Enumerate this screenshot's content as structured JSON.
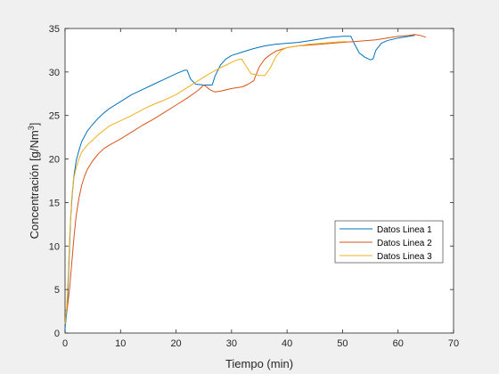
{
  "chart_data": {
    "type": "line",
    "title": "",
    "xlabel": "Tiempo (min)",
    "ylabel_prefix": "Concentración [g/Nm",
    "ylabel_sup": "3",
    "ylabel_suffix": "]",
    "xlim": [
      0,
      70
    ],
    "ylim": [
      0,
      35
    ],
    "xticks": [
      "0",
      "10",
      "20",
      "30",
      "40",
      "50",
      "60",
      "70"
    ],
    "yticks": [
      "0",
      "5",
      "10",
      "15",
      "20",
      "25",
      "30",
      "35"
    ],
    "grid": false,
    "legend_position": "right",
    "series": [
      {
        "name": "Datos Linea 1",
        "color": "#0072BD",
        "points": [
          [
            0,
            0.5
          ],
          [
            0.4,
            3
          ],
          [
            0.7,
            8
          ],
          [
            1,
            13
          ],
          [
            1.3,
            16
          ],
          [
            1.6,
            18
          ],
          [
            2,
            19.8
          ],
          [
            2.5,
            21
          ],
          [
            3,
            22
          ],
          [
            4,
            23.2
          ],
          [
            5,
            24
          ],
          [
            6,
            24.7
          ],
          [
            7,
            25.3
          ],
          [
            8,
            25.8
          ],
          [
            10,
            26.6
          ],
          [
            12,
            27.4
          ],
          [
            14,
            28
          ],
          [
            16,
            28.6
          ],
          [
            18,
            29.2
          ],
          [
            20,
            29.8
          ],
          [
            21.5,
            30.2
          ],
          [
            22,
            30.2
          ],
          [
            22.6,
            29.2
          ],
          [
            23.5,
            28.6
          ],
          [
            25,
            28.5
          ],
          [
            26.5,
            28.5
          ],
          [
            27,
            29.5
          ],
          [
            28,
            30.8
          ],
          [
            29,
            31.5
          ],
          [
            30,
            31.9
          ],
          [
            32,
            32.3
          ],
          [
            34,
            32.7
          ],
          [
            36,
            33
          ],
          [
            38,
            33.2
          ],
          [
            40,
            33.3
          ],
          [
            42,
            33.4
          ],
          [
            44,
            33.6
          ],
          [
            46,
            33.8
          ],
          [
            48,
            34
          ],
          [
            50,
            34.1
          ],
          [
            51.5,
            34.1
          ],
          [
            52,
            33.4
          ],
          [
            53,
            32.2
          ],
          [
            54,
            31.7
          ],
          [
            55,
            31.4
          ],
          [
            55.5,
            31.5
          ],
          [
            56,
            32.5
          ],
          [
            57,
            33.3
          ],
          [
            58,
            33.6
          ],
          [
            60,
            33.9
          ],
          [
            62,
            34.1
          ],
          [
            63,
            34.2
          ]
        ]
      },
      {
        "name": "Datos Linea 2",
        "color": "#D95319",
        "points": [
          [
            0,
            2.5
          ],
          [
            0.4,
            2.8
          ],
          [
            0.8,
            5
          ],
          [
            1.2,
            8
          ],
          [
            1.6,
            11
          ],
          [
            2,
            13.5
          ],
          [
            2.5,
            15.5
          ],
          [
            3,
            17
          ],
          [
            3.5,
            18
          ],
          [
            4,
            18.8
          ],
          [
            5,
            19.8
          ],
          [
            6,
            20.6
          ],
          [
            7,
            21.2
          ],
          [
            8,
            21.6
          ],
          [
            10,
            22.3
          ],
          [
            12,
            23.1
          ],
          [
            14,
            23.9
          ],
          [
            16,
            24.6
          ],
          [
            18,
            25.4
          ],
          [
            20,
            26.2
          ],
          [
            22,
            27
          ],
          [
            24,
            27.9
          ],
          [
            25,
            28.5
          ],
          [
            25.5,
            28.3
          ],
          [
            26,
            28
          ],
          [
            27,
            27.7
          ],
          [
            28,
            27.8
          ],
          [
            30,
            28.1
          ],
          [
            32,
            28.3
          ],
          [
            33,
            28.6
          ],
          [
            34,
            29
          ],
          [
            35,
            30.6
          ],
          [
            36,
            31.5
          ],
          [
            37,
            32
          ],
          [
            38,
            32.4
          ],
          [
            40,
            32.8
          ],
          [
            42,
            33
          ],
          [
            44,
            33.1
          ],
          [
            46,
            33.2
          ],
          [
            48,
            33.3
          ],
          [
            50,
            33.4
          ],
          [
            52,
            33.5
          ],
          [
            54,
            33.6
          ],
          [
            56,
            33.7
          ],
          [
            58,
            33.9
          ],
          [
            60,
            34.1
          ],
          [
            62,
            34.2
          ],
          [
            63,
            34.3
          ],
          [
            64,
            34.2
          ],
          [
            65,
            34
          ]
        ]
      },
      {
        "name": "Datos Linea 3",
        "color": "#EDB120",
        "points": [
          [
            0,
            1
          ],
          [
            0.3,
            3
          ],
          [
            0.6,
            7
          ],
          [
            0.9,
            12
          ],
          [
            1.2,
            15.5
          ],
          [
            1.5,
            17.5
          ],
          [
            2,
            19
          ],
          [
            2.5,
            20
          ],
          [
            3,
            20.8
          ],
          [
            4,
            21.6
          ],
          [
            5,
            22.2
          ],
          [
            6,
            22.8
          ],
          [
            7,
            23.3
          ],
          [
            8,
            23.8
          ],
          [
            10,
            24.4
          ],
          [
            12,
            25
          ],
          [
            14,
            25.7
          ],
          [
            16,
            26.3
          ],
          [
            18,
            26.8
          ],
          [
            20,
            27.4
          ],
          [
            22,
            28.2
          ],
          [
            24,
            29
          ],
          [
            26,
            29.8
          ],
          [
            28,
            30.5
          ],
          [
            30,
            31.1
          ],
          [
            31,
            31.4
          ],
          [
            31.8,
            31.5
          ],
          [
            32.5,
            30.8
          ],
          [
            33.5,
            29.8
          ],
          [
            35,
            29.6
          ],
          [
            36,
            29.6
          ],
          [
            37,
            30.5
          ],
          [
            38,
            31.8
          ],
          [
            39,
            32.5
          ],
          [
            40,
            32.8
          ],
          [
            42,
            33
          ],
          [
            44,
            33.2
          ],
          [
            46,
            33.3
          ],
          [
            48,
            33.4
          ],
          [
            50,
            33.5
          ],
          [
            51,
            33.5
          ]
        ]
      }
    ]
  }
}
